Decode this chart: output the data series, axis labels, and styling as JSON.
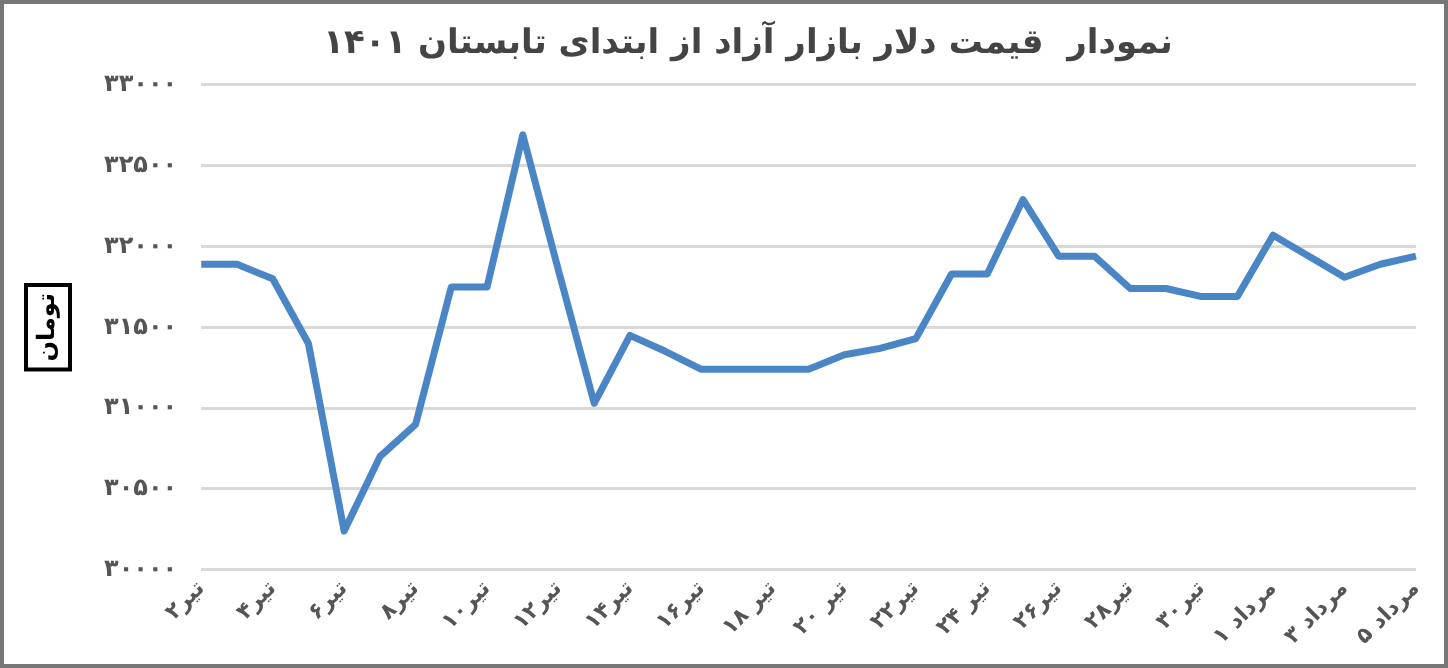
{
  "chart_data": {
    "type": "line",
    "title": "نمودار  قیمت دلار بازار آزاد از ابتدای تابستان ۱۴۰۱",
    "ylabel": "تومان",
    "categories": [
      "تیر۲",
      null,
      "تیر۴",
      null,
      "تیر۶",
      null,
      "تیر۸",
      null,
      "تیر۱۰",
      null,
      "تیر۱۲",
      null,
      "تیر۱۴",
      null,
      "تیر۱۶",
      null,
      "تیر ۱۸",
      null,
      "تیر ۲۰",
      null,
      "تیر۲۲",
      null,
      "تیر ۲۴",
      null,
      "تیر۲۶",
      null,
      "تیر۲۸",
      null,
      "تیر۳۰",
      null,
      "مرداد ۱",
      null,
      "مرداد ۳",
      null,
      "مرداد ۵"
    ],
    "series": [
      {
        "color": "#4a86c5",
        "values": [
          31890,
          31890,
          31800,
          31400,
          30240,
          30700,
          30900,
          31750,
          31750,
          32690,
          31850,
          31030,
          31450,
          31350,
          31240,
          31240,
          31240,
          31240,
          31330,
          31370,
          31430,
          31830,
          31830,
          32290,
          31940,
          31940,
          31740,
          31740,
          31690,
          31690,
          32070,
          31940,
          31810,
          31890,
          31940
        ]
      }
    ],
    "ylim": [
      30000,
      33000
    ],
    "yticks": [
      {
        "value": 30000,
        "label": "۳۰۰۰۰"
      },
      {
        "value": 30500,
        "label": "۳۰۵۰۰"
      },
      {
        "value": 31000,
        "label": "۳۱۰۰۰"
      },
      {
        "value": 31500,
        "label": "۳۱۵۰۰"
      },
      {
        "value": 32000,
        "label": "۳۲۰۰۰"
      },
      {
        "value": 32500,
        "label": "۳۲۵۰۰"
      },
      {
        "value": 33000,
        "label": "۳۳۰۰۰"
      }
    ],
    "grid": "y",
    "legend": false,
    "marker": "none",
    "line_style": "solid"
  }
}
